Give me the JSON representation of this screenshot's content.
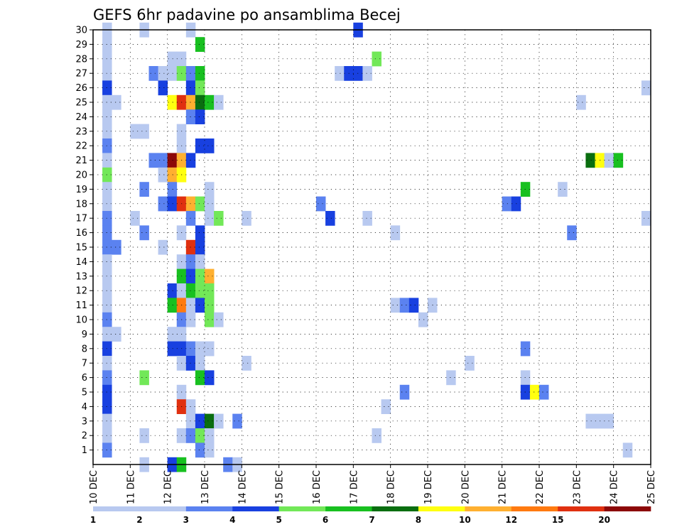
{
  "chart_data": {
    "type": "heatmap",
    "title": "GEFS 6hr padavine po ansamblima Becej",
    "xlabel": "",
    "ylabel": "",
    "x_tick_labels": [
      "10 DEC",
      "11 DEC",
      "12 DEC",
      "13 DEC",
      "14 DEC",
      "15 DEC",
      "16 DEC",
      "17 DEC",
      "18 DEC",
      "19 DEC",
      "20 DEC",
      "21 DEC",
      "22 DEC",
      "23 DEC",
      "24 DEC",
      "25 DEC"
    ],
    "y_tick_labels": [
      "1",
      "2",
      "3",
      "4",
      "5",
      "6",
      "7",
      "8",
      "9",
      "10",
      "11",
      "12",
      "13",
      "14",
      "15",
      "16",
      "17",
      "18",
      "19",
      "20",
      "21",
      "22",
      "23",
      "24",
      "25",
      "26",
      "27",
      "28",
      "29",
      "30"
    ],
    "x_time_step_hours": 6,
    "x_range_days": [
      10,
      25
    ],
    "y_range": [
      0,
      30
    ],
    "grid": true,
    "colorbar": {
      "labels": [
        "1",
        "2",
        "3",
        "4",
        "5",
        "6",
        "7",
        "8",
        "10",
        "12",
        "15",
        "20"
      ],
      "colors": [
        "#b8c9f0",
        "#5b82f0",
        "#1840e0",
        "#72e858",
        "#18c020",
        "#0a6e10",
        "#ffff10",
        "#ffb030",
        "#ff7a10",
        "#e03010",
        "#8c0808"
      ]
    },
    "cells": [
      {
        "m": 30,
        "t": 1,
        "l": 0
      },
      {
        "m": 30,
        "t": 5,
        "l": 0
      },
      {
        "m": 30,
        "t": 10,
        "l": 0
      },
      {
        "m": 30,
        "t": 28,
        "l": 2
      },
      {
        "m": 29,
        "t": 1,
        "l": 0
      },
      {
        "m": 29,
        "t": 11,
        "l": 4
      },
      {
        "m": 28,
        "t": 1,
        "l": 0
      },
      {
        "m": 28,
        "t": 8,
        "l": 0
      },
      {
        "m": 28,
        "t": 9,
        "l": 0
      },
      {
        "m": 28,
        "t": 30,
        "l": 3
      },
      {
        "m": 27,
        "t": 1,
        "l": 0
      },
      {
        "m": 27,
        "t": 6,
        "l": 1
      },
      {
        "m": 27,
        "t": 7,
        "l": 0
      },
      {
        "m": 27,
        "t": 8,
        "l": 0
      },
      {
        "m": 27,
        "t": 9,
        "l": 3
      },
      {
        "m": 27,
        "t": 10,
        "l": 1
      },
      {
        "m": 27,
        "t": 11,
        "l": 4
      },
      {
        "m": 27,
        "t": 26,
        "l": 0
      },
      {
        "m": 27,
        "t": 27,
        "l": 2
      },
      {
        "m": 27,
        "t": 28,
        "l": 2
      },
      {
        "m": 27,
        "t": 29,
        "l": 0
      },
      {
        "m": 26,
        "t": 1,
        "l": 2
      },
      {
        "m": 26,
        "t": 7,
        "l": 2
      },
      {
        "m": 26,
        "t": 10,
        "l": 2
      },
      {
        "m": 26,
        "t": 11,
        "l": 3
      },
      {
        "m": 26,
        "t": 59,
        "l": 0
      },
      {
        "m": 25,
        "t": 1,
        "l": 0
      },
      {
        "m": 25,
        "t": 2,
        "l": 0
      },
      {
        "m": 25,
        "t": 8,
        "l": 6
      },
      {
        "m": 25,
        "t": 9,
        "l": 9
      },
      {
        "m": 25,
        "t": 10,
        "l": 7
      },
      {
        "m": 25,
        "t": 11,
        "l": 5
      },
      {
        "m": 25,
        "t": 12,
        "l": 4
      },
      {
        "m": 25,
        "t": 13,
        "l": 0
      },
      {
        "m": 25,
        "t": 52,
        "l": 0
      },
      {
        "m": 24,
        "t": 1,
        "l": 0
      },
      {
        "m": 24,
        "t": 10,
        "l": 1
      },
      {
        "m": 24,
        "t": 11,
        "l": 2
      },
      {
        "m": 23,
        "t": 1,
        "l": 0
      },
      {
        "m": 23,
        "t": 4,
        "l": 0
      },
      {
        "m": 23,
        "t": 5,
        "l": 0
      },
      {
        "m": 23,
        "t": 9,
        "l": 0
      },
      {
        "m": 22,
        "t": 1,
        "l": 1
      },
      {
        "m": 22,
        "t": 9,
        "l": 0
      },
      {
        "m": 22,
        "t": 11,
        "l": 2
      },
      {
        "m": 22,
        "t": 12,
        "l": 2
      },
      {
        "m": 21,
        "t": 1,
        "l": 0
      },
      {
        "m": 21,
        "t": 6,
        "l": 1
      },
      {
        "m": 21,
        "t": 7,
        "l": 1
      },
      {
        "m": 21,
        "t": 8,
        "l": 10
      },
      {
        "m": 21,
        "t": 9,
        "l": 7
      },
      {
        "m": 21,
        "t": 10,
        "l": 2
      },
      {
        "m": 21,
        "t": 53,
        "l": 5
      },
      {
        "m": 21,
        "t": 54,
        "l": 6
      },
      {
        "m": 21,
        "t": 55,
        "l": 0
      },
      {
        "m": 21,
        "t": 56,
        "l": 4
      },
      {
        "m": 20,
        "t": 1,
        "l": 3
      },
      {
        "m": 20,
        "t": 7,
        "l": 0
      },
      {
        "m": 20,
        "t": 8,
        "l": 7
      },
      {
        "m": 20,
        "t": 9,
        "l": 6
      },
      {
        "m": 19,
        "t": 1,
        "l": 0
      },
      {
        "m": 19,
        "t": 5,
        "l": 1
      },
      {
        "m": 19,
        "t": 8,
        "l": 1
      },
      {
        "m": 19,
        "t": 12,
        "l": 0
      },
      {
        "m": 19,
        "t": 46,
        "l": 4
      },
      {
        "m": 19,
        "t": 50,
        "l": 0
      },
      {
        "m": 18,
        "t": 1,
        "l": 0
      },
      {
        "m": 18,
        "t": 7,
        "l": 1
      },
      {
        "m": 18,
        "t": 8,
        "l": 2
      },
      {
        "m": 18,
        "t": 9,
        "l": 9
      },
      {
        "m": 18,
        "t": 10,
        "l": 7
      },
      {
        "m": 18,
        "t": 11,
        "l": 3
      },
      {
        "m": 18,
        "t": 12,
        "l": 0
      },
      {
        "m": 18,
        "t": 24,
        "l": 1
      },
      {
        "m": 18,
        "t": 44,
        "l": 1
      },
      {
        "m": 18,
        "t": 45,
        "l": 2
      },
      {
        "m": 17,
        "t": 1,
        "l": 1
      },
      {
        "m": 17,
        "t": 4,
        "l": 0
      },
      {
        "m": 17,
        "t": 10,
        "l": 1
      },
      {
        "m": 17,
        "t": 12,
        "l": 0
      },
      {
        "m": 17,
        "t": 13,
        "l": 3
      },
      {
        "m": 17,
        "t": 16,
        "l": 0
      },
      {
        "m": 17,
        "t": 25,
        "l": 2
      },
      {
        "m": 17,
        "t": 29,
        "l": 0
      },
      {
        "m": 17,
        "t": 59,
        "l": 0
      },
      {
        "m": 16,
        "t": 1,
        "l": 1
      },
      {
        "m": 16,
        "t": 5,
        "l": 1
      },
      {
        "m": 16,
        "t": 9,
        "l": 0
      },
      {
        "m": 16,
        "t": 11,
        "l": 2
      },
      {
        "m": 16,
        "t": 32,
        "l": 0
      },
      {
        "m": 16,
        "t": 51,
        "l": 1
      },
      {
        "m": 15,
        "t": 1,
        "l": 1
      },
      {
        "m": 15,
        "t": 2,
        "l": 1
      },
      {
        "m": 15,
        "t": 7,
        "l": 0
      },
      {
        "m": 15,
        "t": 10,
        "l": 9
      },
      {
        "m": 15,
        "t": 11,
        "l": 2
      },
      {
        "m": 14,
        "t": 1,
        "l": 0
      },
      {
        "m": 14,
        "t": 9,
        "l": 0
      },
      {
        "m": 14,
        "t": 10,
        "l": 1
      },
      {
        "m": 14,
        "t": 11,
        "l": 0
      },
      {
        "m": 13,
        "t": 1,
        "l": 0
      },
      {
        "m": 13,
        "t": 9,
        "l": 4
      },
      {
        "m": 13,
        "t": 10,
        "l": 2
      },
      {
        "m": 13,
        "t": 11,
        "l": 3
      },
      {
        "m": 13,
        "t": 12,
        "l": 7
      },
      {
        "m": 12,
        "t": 1,
        "l": 0
      },
      {
        "m": 12,
        "t": 8,
        "l": 2
      },
      {
        "m": 12,
        "t": 9,
        "l": 0
      },
      {
        "m": 12,
        "t": 10,
        "l": 4
      },
      {
        "m": 12,
        "t": 11,
        "l": 3
      },
      {
        "m": 12,
        "t": 12,
        "l": 3
      },
      {
        "m": 11,
        "t": 1,
        "l": 0
      },
      {
        "m": 11,
        "t": 8,
        "l": 4
      },
      {
        "m": 11,
        "t": 9,
        "l": 8
      },
      {
        "m": 11,
        "t": 10,
        "l": 0
      },
      {
        "m": 11,
        "t": 11,
        "l": 2
      },
      {
        "m": 11,
        "t": 12,
        "l": 3
      },
      {
        "m": 11,
        "t": 32,
        "l": 0
      },
      {
        "m": 11,
        "t": 33,
        "l": 1
      },
      {
        "m": 11,
        "t": 34,
        "l": 2
      },
      {
        "m": 11,
        "t": 36,
        "l": 0
      },
      {
        "m": 10,
        "t": 1,
        "l": 1
      },
      {
        "m": 10,
        "t": 9,
        "l": 1
      },
      {
        "m": 10,
        "t": 10,
        "l": 0
      },
      {
        "m": 10,
        "t": 12,
        "l": 3
      },
      {
        "m": 10,
        "t": 13,
        "l": 0
      },
      {
        "m": 10,
        "t": 35,
        "l": 0
      },
      {
        "m": 9,
        "t": 1,
        "l": 0
      },
      {
        "m": 9,
        "t": 2,
        "l": 0
      },
      {
        "m": 9,
        "t": 8,
        "l": 0
      },
      {
        "m": 9,
        "t": 9,
        "l": 0
      },
      {
        "m": 8,
        "t": 1,
        "l": 2
      },
      {
        "m": 8,
        "t": 8,
        "l": 2
      },
      {
        "m": 8,
        "t": 9,
        "l": 2
      },
      {
        "m": 8,
        "t": 10,
        "l": 1
      },
      {
        "m": 8,
        "t": 11,
        "l": 0
      },
      {
        "m": 8,
        "t": 12,
        "l": 0
      },
      {
        "m": 8,
        "t": 46,
        "l": 1
      },
      {
        "m": 7,
        "t": 1,
        "l": 0
      },
      {
        "m": 7,
        "t": 9,
        "l": 0
      },
      {
        "m": 7,
        "t": 10,
        "l": 2
      },
      {
        "m": 7,
        "t": 11,
        "l": 0
      },
      {
        "m": 7,
        "t": 16,
        "l": 0
      },
      {
        "m": 7,
        "t": 40,
        "l": 0
      },
      {
        "m": 6,
        "t": 1,
        "l": 1
      },
      {
        "m": 6,
        "t": 5,
        "l": 3
      },
      {
        "m": 6,
        "t": 11,
        "l": 4
      },
      {
        "m": 6,
        "t": 12,
        "l": 2
      },
      {
        "m": 6,
        "t": 38,
        "l": 0
      },
      {
        "m": 6,
        "t": 46,
        "l": 0
      },
      {
        "m": 5,
        "t": 1,
        "l": 2
      },
      {
        "m": 5,
        "t": 9,
        "l": 0
      },
      {
        "m": 5,
        "t": 33,
        "l": 1
      },
      {
        "m": 5,
        "t": 46,
        "l": 2
      },
      {
        "m": 5,
        "t": 47,
        "l": 6
      },
      {
        "m": 5,
        "t": 48,
        "l": 1
      },
      {
        "m": 4,
        "t": 1,
        "l": 2
      },
      {
        "m": 4,
        "t": 9,
        "l": 9
      },
      {
        "m": 4,
        "t": 10,
        "l": 0
      },
      {
        "m": 4,
        "t": 31,
        "l": 0
      },
      {
        "m": 3,
        "t": 1,
        "l": 0
      },
      {
        "m": 3,
        "t": 10,
        "l": 0
      },
      {
        "m": 3,
        "t": 11,
        "l": 2
      },
      {
        "m": 3,
        "t": 12,
        "l": 5
      },
      {
        "m": 3,
        "t": 13,
        "l": 0
      },
      {
        "m": 3,
        "t": 15,
        "l": 1
      },
      {
        "m": 3,
        "t": 53,
        "l": 0
      },
      {
        "m": 3,
        "t": 54,
        "l": 0
      },
      {
        "m": 3,
        "t": 55,
        "l": 0
      },
      {
        "m": 2,
        "t": 1,
        "l": 0
      },
      {
        "m": 2,
        "t": 5,
        "l": 0
      },
      {
        "m": 2,
        "t": 9,
        "l": 0
      },
      {
        "m": 2,
        "t": 10,
        "l": 1
      },
      {
        "m": 2,
        "t": 11,
        "l": 3
      },
      {
        "m": 2,
        "t": 12,
        "l": 0
      },
      {
        "m": 2,
        "t": 30,
        "l": 0
      },
      {
        "m": 1,
        "t": 1,
        "l": 1
      },
      {
        "m": 1,
        "t": 11,
        "l": 1
      },
      {
        "m": 1,
        "t": 12,
        "l": 0
      },
      {
        "m": 1,
        "t": 57,
        "l": 0
      },
      {
        "m": 0,
        "t": 8,
        "l": 2
      },
      {
        "m": 0,
        "t": 9,
        "l": 4
      },
      {
        "m": 0,
        "t": 14,
        "l": 1
      },
      {
        "m": 0,
        "t": 15,
        "l": 0
      },
      {
        "m": 0,
        "t": 5,
        "l": 0
      }
    ]
  }
}
